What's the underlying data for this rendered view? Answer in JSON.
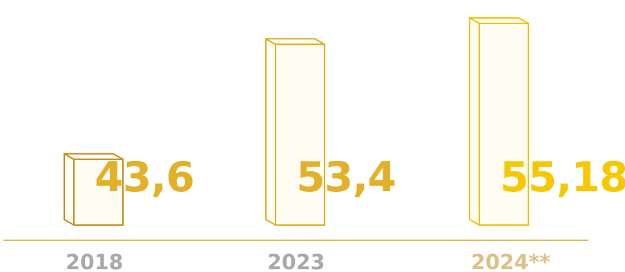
{
  "chart_data": {
    "type": "bar",
    "categories": [
      "2018",
      "2023",
      "2024**"
    ],
    "values": [
      43.6,
      53.4,
      55.18
    ],
    "value_labels": [
      "43,6",
      "53,4",
      "55,18"
    ],
    "ylim": [
      38,
      56
    ],
    "title": "",
    "xlabel": "",
    "ylabel": "",
    "grid": false,
    "legend": "none",
    "colors": {
      "bar_outline": [
        "#c48a1e",
        "#e0ac22",
        "#f2c200"
      ],
      "bar_fill": [
        "#fffcf2",
        "#fffcf2",
        "#fffcf2"
      ],
      "value_label": [
        "#e3b02a",
        "#e3b02a",
        "#f6c800"
      ],
      "category_label": [
        "#a9a9a9",
        "#a9a9a9",
        "#dcc08a"
      ],
      "baseline": "#e3b95a"
    }
  }
}
